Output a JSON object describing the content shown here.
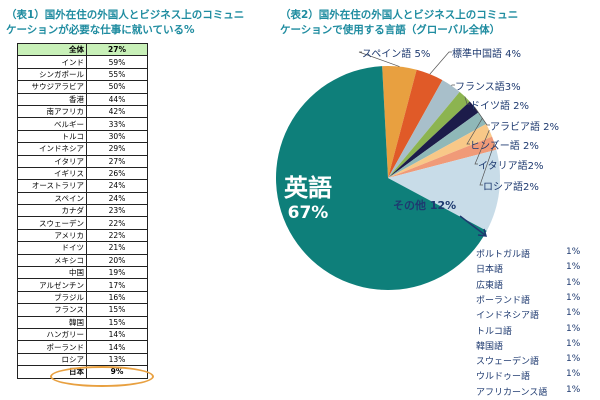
{
  "chart_data": [
    {
      "type": "table",
      "title": "（表1）国外在住の外国人とビジネス上のコミュニケーションが必要な仕事に就いている%",
      "rows": [
        [
          "全体",
          "27%"
        ],
        [
          "インド",
          "59%"
        ],
        [
          "シンガポール",
          "55%"
        ],
        [
          "サウジアラビア",
          "50%"
        ],
        [
          "香港",
          "44%"
        ],
        [
          "南アフリカ",
          "42%"
        ],
        [
          "ベルギー",
          "33%"
        ],
        [
          "トルコ",
          "30%"
        ],
        [
          "インドネシア",
          "29%"
        ],
        [
          "イタリア",
          "27%"
        ],
        [
          "イギリス",
          "26%"
        ],
        [
          "オーストラリア",
          "24%"
        ],
        [
          "スペイン",
          "24%"
        ],
        [
          "カナダ",
          "23%"
        ],
        [
          "スウェーデン",
          "22%"
        ],
        [
          "アメリカ",
          "22%"
        ],
        [
          "ドイツ",
          "21%"
        ],
        [
          "メキシコ",
          "20%"
        ],
        [
          "中国",
          "19%"
        ],
        [
          "アルゼンチン",
          "17%"
        ],
        [
          "ブラジル",
          "16%"
        ],
        [
          "フランス",
          "15%"
        ],
        [
          "韓国",
          "15%"
        ],
        [
          "ハンガリー",
          "14%"
        ],
        [
          "ポーランド",
          "14%"
        ],
        [
          "ロシア",
          "13%"
        ],
        [
          "日本",
          "9%"
        ]
      ]
    },
    {
      "type": "pie",
      "title": "（表2）国外在住の外国人とビジネス上のコミュニケーションで使用する言語（グローバル全体）",
      "slices": [
        {
          "label": "スペイン語 5%",
          "value": 5,
          "color": "#e8a040"
        },
        {
          "label": "標準中国語 4%",
          "value": 4,
          "color": "#e05a28"
        },
        {
          "label": "フランス語3%",
          "value": 3,
          "color": "#a8bfca"
        },
        {
          "label": "ドイツ語 2%",
          "value": 2,
          "color": "#8cb450"
        },
        {
          "label": "アラビア語 2%",
          "value": 2,
          "color": "#1c1c4a"
        },
        {
          "label": "ヒンズー語 2%",
          "value": 2,
          "color": "#8fb8b8"
        },
        {
          "label": "イタリア語2%",
          "value": 2,
          "color": "#f8c888"
        },
        {
          "label": "ロシア語2%",
          "value": 2,
          "color": "#f09a78"
        },
        {
          "label": "その他 12%",
          "value": 12,
          "color": "#c8dce8"
        },
        {
          "label": "英語",
          "pct": "67%",
          "value": 67,
          "color": "#0e7f7a"
        }
      ],
      "others": [
        [
          "ポルトガル語",
          "1%"
        ],
        [
          "日本語",
          "1%"
        ],
        [
          "広東語",
          "1%"
        ],
        [
          "ポーランド語",
          "1%"
        ],
        [
          "インドネシア語",
          "1%"
        ],
        [
          "トルコ語",
          "1%"
        ],
        [
          "韓国語",
          "1%"
        ],
        [
          "スウェーデン語",
          "1%"
        ],
        [
          "ウルドゥー語",
          "1%"
        ],
        [
          "アフリカーンス語",
          "1%"
        ]
      ]
    }
  ],
  "title1_line1": "（表1）国外在住の外国人とビジネス上のコミュニ",
  "title1_line2": "ケーションが必要な仕事に就いている%",
  "title2_line1": "（表2）国外在住の外国人とビジネス上のコミュニ",
  "title2_line2": "ケーションで使用する言語（グローバル全体）"
}
